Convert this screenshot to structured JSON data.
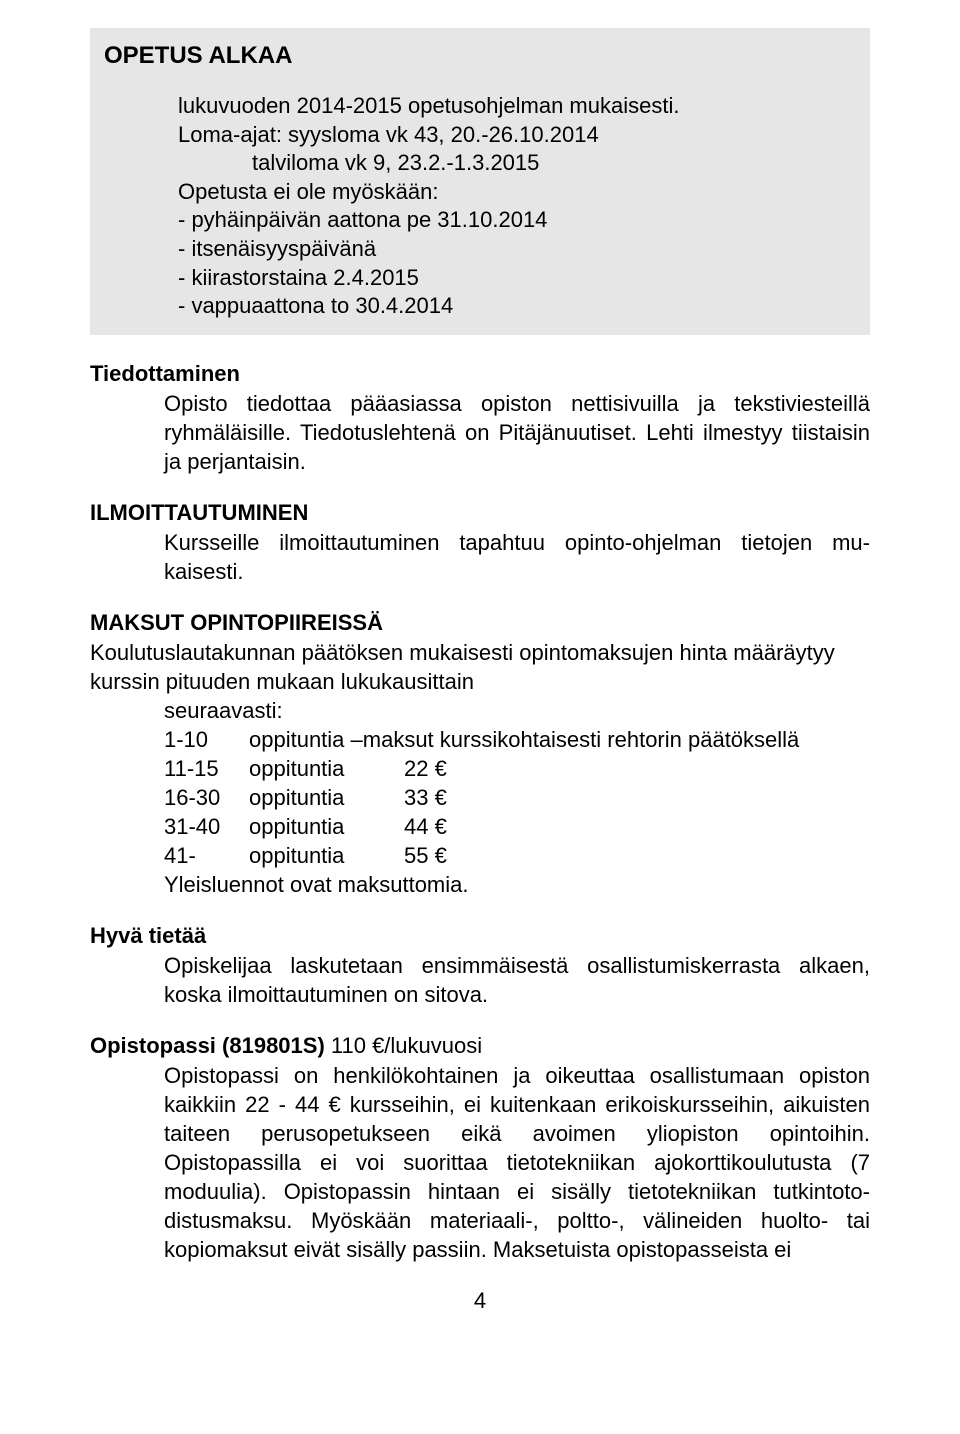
{
  "colors": {
    "background": "#ffffff",
    "greybox": "#e6e6e6",
    "text": "#000000"
  },
  "typography": {
    "font_family": "Arial, Helvetica, sans-serif",
    "heading_size_pt": 18,
    "body_size_pt": 16
  },
  "greybox": {
    "title": "OPETUS ALKAA",
    "lines": [
      "lukuvuoden 2014-2015 opetusohjelman mukaisesti.",
      "Loma-ajat:  syysloma  vk 43, 20.-26.10.2014"
    ],
    "indent_line": "talviloma  vk 9, 23.2.-1.3.2015",
    "lines2": [
      "Opetusta ei ole myöskään:",
      "- pyhäinpäivän aattona pe 31.10.2014",
      "- itsenäisyyspäivänä",
      "- kiirastorstaina 2.4.2015",
      "- vappuaattona  to 30.4.2014"
    ]
  },
  "tiedottaminen": {
    "heading": "Tiedottaminen",
    "body": "Opisto tiedottaa pääasiassa opiston nettisivuilla ja tekstiviesteillä ryhmäläisille. Tiedotuslehtenä on Pitäjänuutiset. Lehti ilmestyy tiis­taisin ja perjantaisin."
  },
  "ilmoittautuminen": {
    "heading": "ILMOITTAUTUMINEN",
    "body": "Kursseille ilmoittautuminen tapahtuu opinto-ohjelman tietojen mu­kaisesti."
  },
  "maksut": {
    "heading": "MAKSUT OPINTOPIIREISSÄ",
    "intro1": "Koulutuslautakunnan päätöksen mukaisesti opintomaksujen hinta määräytyy kurssin pituuden mukaan lukukausittain",
    "intro2": "seuraavasti:",
    "first_row": {
      "range": "1-10",
      "text": "oppituntia –maksut kurssikohtaisesti rehtorin päätöksellä"
    },
    "rows": [
      {
        "range": "11-15",
        "label": "oppituntia",
        "price": "22 €"
      },
      {
        "range": "16-30",
        "label": "oppituntia",
        "price": "33 €"
      },
      {
        "range": "31-40",
        "label": "oppituntia",
        "price": "44 €"
      },
      {
        "range": "41-",
        "label": "oppituntia",
        "price": "55 €"
      }
    ],
    "footer": "Yleisluennot ovat maksuttomia."
  },
  "hyva": {
    "heading": "Hyvä tietää",
    "body": "Opiskelijaa laskutetaan ensimmäisestä osallistumiskerrasta alkaen, koska ilmoittautuminen on sitova."
  },
  "opistopassi": {
    "heading_bold": "Opistopassi (819801S) ",
    "heading_rest": "110 €/lukuvuosi",
    "body": "Opistopassi on henkilökohtainen ja oikeuttaa osallistumaan opiston kaikkiin 22 - 44 € kursseihin, ei kuitenkaan erikoiskursseihin, aikuis­ten taiteen perusopetukseen eikä avoimen yliopiston opintoihin. Opistopassilla ei voi suorittaa tietotekniikan ajokorttikoulutusta (7 moduulia). Opistopassin hintaan ei sisälly tietotekniikan tutkintoto­distusmaksu. Myöskään materiaali-, poltto-, välineiden huolto- tai kopiomaksut eivät sisälly passiin. Maksetuista opistopasseista ei"
  },
  "page_number": "4"
}
